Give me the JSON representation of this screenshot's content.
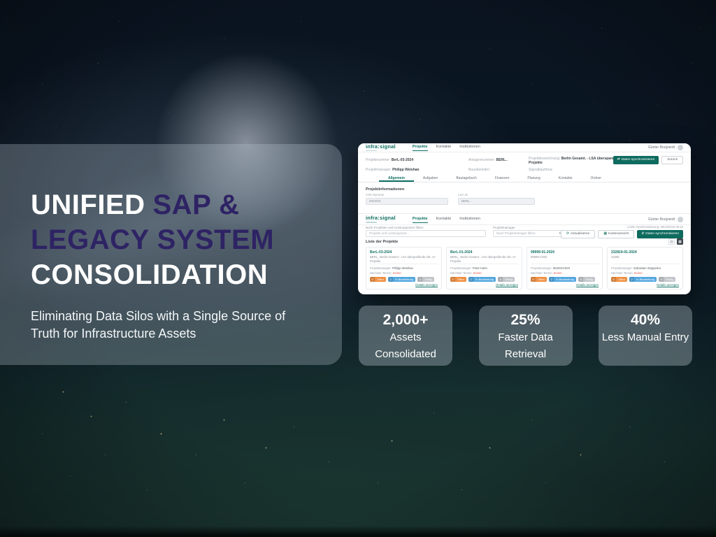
{
  "slide": {
    "title": {
      "white1": "UNIFIED",
      "purple1": "SAP &",
      "purple2": "LEGACY SYSTEM",
      "white2": "CONSOLIDATION"
    },
    "subtitle": "Eliminating Data Silos with a Single Source of Truth for Infrastructure Assets",
    "colors": {
      "title_purple": "#2e2364",
      "panel_overlay": "rgba(186,198,208,0.30)"
    },
    "stats": [
      {
        "value": "2,000+",
        "label": "Assets Consolidated"
      },
      {
        "value": "25%",
        "label": "Faster Data Retrieval"
      },
      {
        "value": "40%",
        "label": "Less Manual Entry"
      }
    ]
  },
  "app": {
    "brand": "infra:signal",
    "user_name": "Günter Borgstedt",
    "nav": [
      "Projekte",
      "Kontakte",
      "Institutionen"
    ],
    "colors": {
      "brand_teal": "#0e6f62",
      "button_green": "#0e6b5e",
      "badge_orange": "#ef9043",
      "badge_blue": "#53a7e0",
      "badge_gray": "#c2c6cb",
      "alert_red": "#e25a4d"
    },
    "detail": {
      "fields_row1": [
        {
          "label": "Projektnummer:",
          "value": "BerL-03-2024"
        },
        {
          "label": "Anlagennummer:",
          "value": "BERL.."
        },
        {
          "label": "Projektbezeichnung:",
          "value": "Berlin Gesamt. - LSA überspannende Abt. VI-Projekte"
        }
      ],
      "fields_row2": [
        {
          "label": "Projektmanager:",
          "value": "Philipp Weishan"
        },
        {
          "label": "Bauoberleiter:",
          "value": ""
        },
        {
          "label": "Signalbaufirma:",
          "value": ""
        }
      ],
      "sync_button": "Daten synchronisieren",
      "back_button": "Zurück",
      "tabs": [
        "Allgemein",
        "Aufgaben",
        "Bautagebuch",
        "Finanzen",
        "Planung",
        "Kontakte",
        "Ordner"
      ],
      "section_title": "Projektinformationen",
      "inputs": [
        {
          "label": "VzB Nummer",
          "value": "2023/03"
        },
        {
          "label": "LSA ID",
          "value": "BERL."
        }
      ]
    },
    "list": {
      "filter_label": "Nach Projekten und Leistungsorten filtern",
      "filter_placeholder": "Projekte und Leistungsorte...",
      "manager_label": "Projektmanager",
      "manager_placeholder": "Nach Projektmanager filtern",
      "last_sync": "Letzte Synchronisierung: 08/10/2024 09:15",
      "refresh_button": "Aktualisieren",
      "map_button": "Kartenansicht",
      "sync_button": "Daten synchronisieren",
      "list_title": "Liste der Projekte",
      "card_labels": {
        "manager": "Projektmanager:",
        "termin": "Nächster Termin:",
        "details": "Details anzeigen"
      },
      "badge_labels": {
        "open": "Offen",
        "progress": "In Bearbeitung",
        "done": "Fertig"
      },
      "cards": [
        {
          "title": "BerL-03-2024",
          "subtitle": "BERL_ Berlin Gesamt - LSA übergreifende Abt. VI-Projekte",
          "manager": "Philipp Weishan",
          "termin": "Keiner",
          "open": "0",
          "progress": "2",
          "done": "0"
        },
        {
          "title": "BerL-01-2024",
          "subtitle": "BERL_ Berlin Gesamt - LSA übergreifende Abt. VI-Projekte",
          "manager": "Peter Kahn",
          "termin": "Keiner",
          "open": "0",
          "progress": "2",
          "done": "0"
        },
        {
          "title": "99999-01-2024",
          "subtitle": "99999-VS02",
          "manager": "MUENCHEN",
          "termin": "Keiner",
          "open": "0",
          "progress": "2",
          "done": "0"
        },
        {
          "title": "232819-01-2024",
          "subtitle": "23285",
          "manager": "Sebastian Stopperka",
          "termin": "Keiner",
          "open": "0",
          "progress": "2",
          "done": "0"
        }
      ]
    }
  }
}
